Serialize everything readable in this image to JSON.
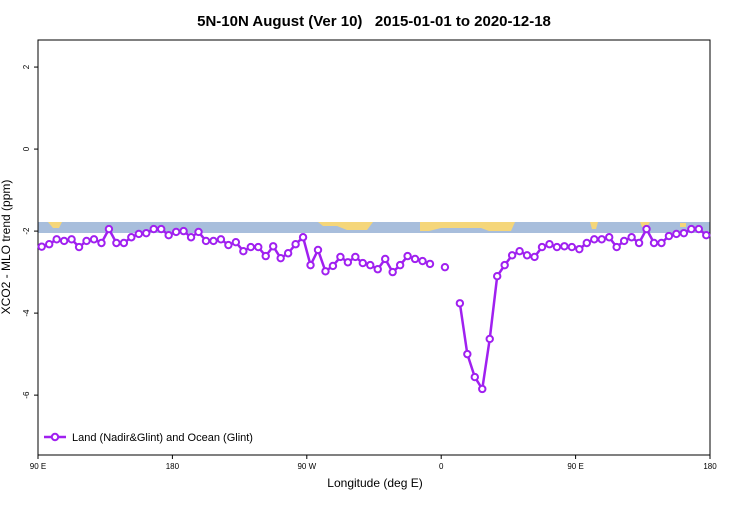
{
  "chart_data": {
    "type": "line",
    "title": "5N-10N August (Ver 10)   2015-01-01 to 2020-12-18",
    "xlabel": "Longitude (deg E)",
    "ylabel": "XCO2 - MLO trend (ppm)",
    "x": [
      92.5,
      97.5,
      102.5,
      107.5,
      112.5,
      117.5,
      122.5,
      127.5,
      132.5,
      137.5,
      142.5,
      147.5,
      152.5,
      157.5,
      162.5,
      167.5,
      172.5,
      177.5,
      182.5,
      187.5,
      192.5,
      197.5,
      202.5,
      207.5,
      212.5,
      217.5,
      222.5,
      227.5,
      232.5,
      237.5,
      242.5,
      247.5,
      252.5,
      257.5,
      262.5,
      267.5,
      272.5,
      277.5,
      282.5,
      287.5,
      292.5,
      297.5,
      302.5,
      307.5,
      312.5,
      317.5,
      322.5,
      327.5,
      332.5,
      337.5,
      342.5,
      347.5,
      352.5,
      357.5,
      362.5,
      367.5,
      372.5,
      377.5,
      382.5,
      387.5,
      392.5,
      397.5,
      402.5,
      407.5,
      412.5,
      417.5,
      422.5,
      427.5,
      432.5,
      437.5,
      442.5,
      447.5,
      452.5,
      457.5,
      462.5,
      467.5,
      472.5,
      477.5,
      482.5,
      487.5,
      492.5,
      497.5,
      502.5,
      507.5,
      512.5,
      517.5,
      522.5,
      527.5,
      532.5,
      537.5
    ],
    "series": [
      {
        "name": "Land (Nadir&Glint) and Ocean (Glint)",
        "color": "#a020f0",
        "values": [
          -2.38,
          -2.32,
          -2.2,
          -2.24,
          -2.2,
          -2.39,
          -2.24,
          -2.2,
          -2.29,
          -1.95,
          -2.29,
          -2.29,
          -2.15,
          -2.07,
          -2.05,
          -1.95,
          -1.95,
          -2.1,
          -2.02,
          -2.0,
          -2.15,
          -2.02,
          -2.24,
          -2.24,
          -2.2,
          -2.34,
          -2.27,
          -2.49,
          -2.39,
          -2.39,
          -2.61,
          -2.37,
          -2.66,
          -2.54,
          -2.32,
          -2.15,
          -2.83,
          -2.46,
          -2.98,
          -2.85,
          -2.63,
          -2.76,
          -2.63,
          -2.78,
          -2.83,
          -2.93,
          -2.68,
          -3.0,
          -2.83,
          -2.61,
          -2.68,
          -2.73,
          -2.8,
          null,
          -2.88,
          null,
          -3.76,
          -5.0,
          -5.56,
          -5.85,
          -4.63,
          -3.1,
          -2.83,
          -2.59,
          -2.49,
          -2.59,
          -2.63,
          -2.39,
          -2.32,
          -2.39,
          -2.37,
          -2.39,
          -2.44,
          -2.29,
          -2.2,
          -2.2,
          -2.15,
          -2.39,
          -2.24,
          -2.15,
          -2.29,
          -1.95,
          -2.29,
          -2.29,
          -2.12,
          -2.07,
          -2.05,
          -1.95,
          -1.95,
          -2.1
        ]
      }
    ],
    "xlim": [
      90,
      540
    ],
    "xticks": [
      {
        "value": 90,
        "label": "90 E"
      },
      180,
      {
        "value": 270,
        "label": "90 W"
      },
      {
        "value": 360,
        "label": "0"
      },
      {
        "value": 450,
        "label": "90 E"
      },
      {
        "value": 540,
        "label": "180"
      }
    ],
    "ylim": [
      -7.46,
      2.66
    ],
    "yticks": [
      2,
      0,
      -2,
      -4,
      -6
    ],
    "grid": false,
    "legend": "bottom-left"
  }
}
